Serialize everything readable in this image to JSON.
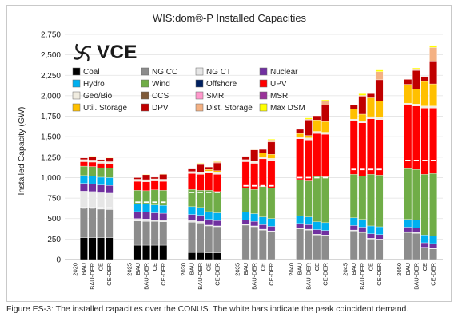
{
  "caption": "Figure ES-3: The installed capacities over the CONUS. The white bars indicate the peak coincident demand.",
  "logo_text": "VCE",
  "chart_data": {
    "type": "bar",
    "stacked": true,
    "title": "WIS:dom®-P Installed Capacities",
    "ylabel": "Installed Capacity (GW)",
    "ylim": [
      0,
      2750
    ],
    "yticks": [
      0,
      250,
      500,
      750,
      1000,
      1250,
      1500,
      1750,
      2000,
      2250,
      2500,
      2750
    ],
    "ytick_labels": [
      "0",
      "250",
      "500",
      "750",
      "1,000",
      "1,250",
      "1,500",
      "1,750",
      "2,000",
      "2,250",
      "2,500",
      "2,750"
    ],
    "years": [
      "2020",
      "2025",
      "2030",
      "2035",
      "2040",
      "2045",
      "2050"
    ],
    "scenarios": [
      "BAU",
      "BAU-DER",
      "CE",
      "CE-DER"
    ],
    "legend": [
      {
        "name": "Coal",
        "color": "#000000"
      },
      {
        "name": "NG CC",
        "color": "#8c8c8c"
      },
      {
        "name": "NG CT",
        "color": "#e6e6e6"
      },
      {
        "name": "Nuclear",
        "color": "#7030a0"
      },
      {
        "name": "Hydro",
        "color": "#00b0f0"
      },
      {
        "name": "Wind",
        "color": "#70ad47"
      },
      {
        "name": "Offshore",
        "color": "#002060"
      },
      {
        "name": "UPV",
        "color": "#ff0000"
      },
      {
        "name": "Geo/Bio",
        "color": "#f0ece0"
      },
      {
        "name": "CCS",
        "color": "#7f5b3a"
      },
      {
        "name": "SMR",
        "color": "#ff99cc"
      },
      {
        "name": "MSR",
        "color": "#993399"
      },
      {
        "name": "Util. Storage",
        "color": "#ffc000"
      },
      {
        "name": "DPV",
        "color": "#c00000"
      },
      {
        "name": "Dist. Storage",
        "color": "#f4b183"
      },
      {
        "name": "Max DSM",
        "color": "#ffff00"
      }
    ],
    "series": [
      {
        "name": "Coal",
        "values": [
          [
            265,
            265,
            265,
            265
          ],
          [
            175,
            175,
            175,
            175
          ],
          [
            85,
            85,
            80,
            80
          ],
          [
            0,
            0,
            0,
            0
          ],
          [
            0,
            0,
            0,
            0
          ],
          [
            0,
            0,
            0,
            0
          ],
          [
            0,
            0,
            0,
            0
          ]
        ]
      },
      {
        "name": "NG CC",
        "values": [
          [
            370,
            365,
            350,
            345
          ],
          [
            295,
            290,
            290,
            285
          ],
          [
            370,
            360,
            330,
            320
          ],
          [
            420,
            400,
            360,
            340
          ],
          [
            375,
            360,
            300,
            290
          ],
          [
            350,
            330,
            250,
            240
          ],
          [
            330,
            320,
            140,
            130
          ]
        ]
      },
      {
        "name": "NG CT",
        "values": [
          [
            200,
            200,
            200,
            200
          ],
          [
            30,
            30,
            20,
            20
          ],
          [
            20,
            20,
            10,
            10
          ],
          [
            10,
            10,
            10,
            10
          ],
          [
            10,
            10,
            10,
            10
          ],
          [
            10,
            10,
            10,
            10
          ],
          [
            10,
            10,
            10,
            10
          ]
        ]
      },
      {
        "name": "Nuclear",
        "values": [
          [
            95,
            95,
            95,
            95
          ],
          [
            85,
            85,
            85,
            85
          ],
          [
            75,
            75,
            70,
            65
          ],
          [
            55,
            55,
            55,
            55
          ],
          [
            55,
            55,
            55,
            55
          ],
          [
            55,
            55,
            55,
            55
          ],
          [
            55,
            55,
            55,
            55
          ]
        ]
      },
      {
        "name": "Hydro",
        "values": [
          [
            95,
            95,
            95,
            95
          ],
          [
            95,
            95,
            95,
            95
          ],
          [
            95,
            95,
            95,
            95
          ],
          [
            95,
            95,
            95,
            95
          ],
          [
            95,
            95,
            95,
            95
          ],
          [
            95,
            95,
            95,
            95
          ],
          [
            95,
            95,
            95,
            95
          ]
        ]
      },
      {
        "name": "Wind",
        "values": [
          [
            115,
            115,
            115,
            115
          ],
          [
            165,
            165,
            185,
            185
          ],
          [
            210,
            210,
            260,
            260
          ],
          [
            295,
            295,
            370,
            370
          ],
          [
            440,
            440,
            560,
            560
          ],
          [
            530,
            530,
            630,
            630
          ],
          [
            620,
            620,
            740,
            760
          ]
        ]
      },
      {
        "name": "Offshore",
        "values": [
          [
            0,
            0,
            0,
            0
          ],
          [
            0,
            0,
            0,
            0
          ],
          [
            0,
            0,
            0,
            0
          ],
          [
            0,
            0,
            0,
            0
          ],
          [
            0,
            0,
            0,
            0
          ],
          [
            0,
            0,
            0,
            0
          ],
          [
            0,
            0,
            0,
            0
          ]
        ]
      },
      {
        "name": "UPV",
        "values": [
          [
            55,
            55,
            55,
            55
          ],
          [
            110,
            110,
            110,
            110
          ],
          [
            195,
            195,
            210,
            210
          ],
          [
            320,
            320,
            340,
            340
          ],
          [
            500,
            500,
            520,
            520
          ],
          [
            650,
            650,
            680,
            680
          ],
          [
            775,
            775,
            810,
            800
          ]
        ]
      },
      {
        "name": "Geo/Bio",
        "values": [
          [
            25,
            25,
            25,
            25
          ],
          [
            25,
            25,
            25,
            25
          ],
          [
            25,
            25,
            25,
            25
          ],
          [
            25,
            25,
            25,
            25
          ],
          [
            25,
            25,
            25,
            25
          ],
          [
            25,
            25,
            25,
            25
          ],
          [
            25,
            25,
            25,
            25
          ]
        ]
      },
      {
        "name": "CCS",
        "values": [
          [
            0,
            0,
            0,
            0
          ],
          [
            0,
            0,
            0,
            0
          ],
          [
            0,
            0,
            0,
            0
          ],
          [
            0,
            0,
            0,
            0
          ],
          [
            0,
            0,
            0,
            0
          ],
          [
            0,
            0,
            0,
            0
          ],
          [
            0,
            0,
            0,
            0
          ]
        ]
      },
      {
        "name": "SMR",
        "values": [
          [
            0,
            0,
            0,
            0
          ],
          [
            0,
            0,
            0,
            0
          ],
          [
            0,
            0,
            0,
            0
          ],
          [
            0,
            0,
            0,
            0
          ],
          [
            0,
            0,
            0,
            0
          ],
          [
            0,
            0,
            0,
            0
          ],
          [
            0,
            0,
            0,
            0
          ]
        ]
      },
      {
        "name": "MSR",
        "values": [
          [
            0,
            0,
            0,
            0
          ],
          [
            0,
            0,
            0,
            0
          ],
          [
            0,
            0,
            0,
            0
          ],
          [
            0,
            0,
            0,
            0
          ],
          [
            0,
            0,
            0,
            0
          ],
          [
            0,
            0,
            0,
            0
          ],
          [
            0,
            0,
            0,
            0
          ]
        ]
      },
      {
        "name": "Util. Storage",
        "values": [
          [
            0,
            0,
            0,
            0
          ],
          [
            0,
            0,
            0,
            0
          ],
          [
            0,
            0,
            20,
            20
          ],
          [
            0,
            0,
            50,
            50
          ],
          [
            40,
            30,
            140,
            130
          ],
          [
            120,
            80,
            230,
            200
          ],
          [
            230,
            180,
            300,
            270
          ]
        ]
      },
      {
        "name": "DPV",
        "values": [
          [
            20,
            45,
            20,
            45
          ],
          [
            20,
            60,
            20,
            60
          ],
          [
            30,
            95,
            30,
            95
          ],
          [
            40,
            140,
            40,
            150
          ],
          [
            50,
            190,
            50,
            200
          ],
          [
            50,
            220,
            50,
            260
          ],
          [
            60,
            230,
            60,
            270
          ]
        ]
      },
      {
        "name": "Dist. Storage",
        "values": [
          [
            0,
            0,
            0,
            0
          ],
          [
            0,
            0,
            0,
            0
          ],
          [
            0,
            5,
            0,
            15
          ],
          [
            0,
            5,
            0,
            25
          ],
          [
            0,
            10,
            0,
            50
          ],
          [
            0,
            10,
            0,
            100
          ],
          [
            0,
            10,
            0,
            175
          ]
        ]
      },
      {
        "name": "Max DSM",
        "values": [
          [
            0,
            5,
            0,
            5
          ],
          [
            0,
            5,
            0,
            5
          ],
          [
            0,
            10,
            0,
            10
          ],
          [
            0,
            10,
            0,
            10
          ],
          [
            0,
            15,
            0,
            15
          ],
          [
            0,
            20,
            0,
            20
          ],
          [
            0,
            20,
            0,
            25
          ]
        ]
      }
    ],
    "peak_demand_markers": "white bars",
    "peak_demand": [
      [
        630,
        630,
        630,
        630
      ],
      [
        700,
        700,
        700,
        700
      ],
      [
        820,
        820,
        820,
        820
      ],
      [
        900,
        900,
        900,
        900
      ],
      [
        1000,
        1000,
        1000,
        1000
      ],
      [
        1100,
        1100,
        1100,
        1100
      ],
      [
        1210,
        1210,
        1210,
        1210
      ]
    ]
  }
}
